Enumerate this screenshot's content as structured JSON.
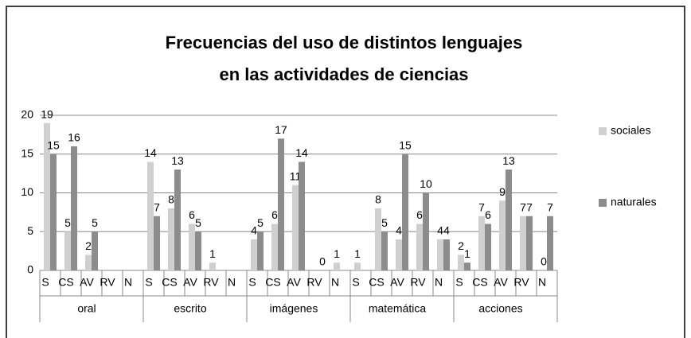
{
  "chart_data": {
    "type": "bar",
    "title": [
      "Frecuencias del uso de distintos lenguajes",
      "en las actividades de ciencias"
    ],
    "groups": [
      {
        "name": "oral",
        "categories": [
          "S",
          "CS",
          "AV",
          "RV",
          "N"
        ]
      },
      {
        "name": "escrito",
        "categories": [
          "S",
          "CS",
          "AV",
          "RV",
          "N"
        ]
      },
      {
        "name": "imágenes",
        "categories": [
          "S",
          "CS",
          "AV",
          "RV",
          "N"
        ]
      },
      {
        "name": "matemática",
        "categories": [
          "S",
          "CS",
          "AV",
          "RV",
          "N"
        ]
      },
      {
        "name": "acciones",
        "categories": [
          "S",
          "CS",
          "AV",
          "RV",
          "N"
        ]
      }
    ],
    "series": [
      {
        "name": "sociales",
        "color": "#d0d0d0",
        "values": [
          19,
          5,
          2,
          null,
          null,
          14,
          8,
          6,
          1,
          null,
          4,
          6,
          11,
          null,
          1,
          1,
          8,
          4,
          6,
          4,
          2,
          7,
          9,
          7,
          0
        ]
      },
      {
        "name": "naturales",
        "color": "#8c8c8c",
        "values": [
          15,
          16,
          5,
          null,
          null,
          7,
          13,
          5,
          null,
          null,
          5,
          17,
          14,
          0,
          null,
          null,
          5,
          15,
          10,
          4,
          1,
          6,
          13,
          7,
          7
        ]
      }
    ],
    "ylim": [
      0,
      20
    ],
    "yticks": [
      0,
      5,
      10,
      15,
      20
    ],
    "grid": true,
    "legend": "right"
  }
}
